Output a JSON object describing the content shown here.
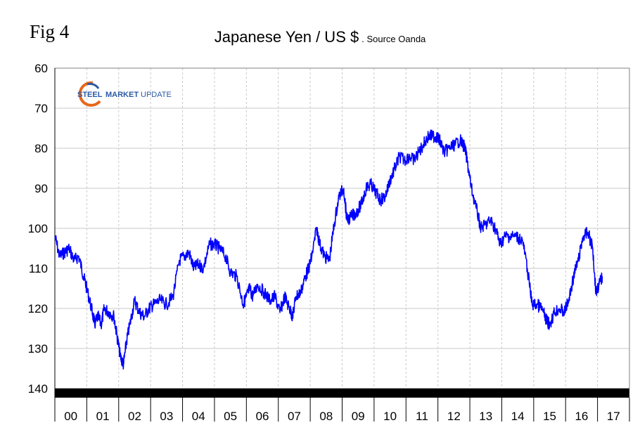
{
  "figure": {
    "label": "Fig 4",
    "title": "Japanese Yen / US $",
    "source": ". Source Oanda"
  },
  "logo": {
    "text_steel": "STEEL",
    "text_market": "MARKET",
    "text_update": "UPDATE"
  },
  "colors": {
    "line": "#0000ff",
    "grid": "#c8c8c8",
    "band": "#000000"
  },
  "chart_data": {
    "type": "line",
    "ylabel": "",
    "xlabel": "",
    "ylim": [
      60,
      140
    ],
    "y_inverted": true,
    "yticks": [
      60,
      70,
      80,
      90,
      100,
      110,
      120,
      130,
      140
    ],
    "grid": true,
    "categories": [
      "00",
      "01",
      "02",
      "03",
      "04",
      "05",
      "06",
      "07",
      "08",
      "09",
      "10",
      "11",
      "12",
      "13",
      "14",
      "15",
      "16",
      "17"
    ],
    "series": [
      {
        "values_by_year": [
          [
            2000.0,
            102
          ],
          [
            2000.15,
            107
          ],
          [
            2000.3,
            106
          ],
          [
            2000.45,
            105
          ],
          [
            2000.6,
            108
          ],
          [
            2000.75,
            107
          ],
          [
            2000.9,
            112
          ],
          [
            2001.0,
            115
          ],
          [
            2001.15,
            120
          ],
          [
            2001.25,
            124
          ],
          [
            2001.35,
            122
          ],
          [
            2001.45,
            124
          ],
          [
            2001.55,
            120
          ],
          [
            2001.7,
            121
          ],
          [
            2001.85,
            122
          ],
          [
            2001.95,
            127
          ],
          [
            2002.05,
            132
          ],
          [
            2002.15,
            134
          ],
          [
            2002.25,
            128
          ],
          [
            2002.35,
            124
          ],
          [
            2002.5,
            118
          ],
          [
            2002.65,
            121
          ],
          [
            2002.8,
            122
          ],
          [
            2002.95,
            120
          ],
          [
            2003.1,
            119
          ],
          [
            2003.3,
            118
          ],
          [
            2003.5,
            119
          ],
          [
            2003.7,
            117
          ],
          [
            2003.9,
            108
          ],
          [
            2004.05,
            107
          ],
          [
            2004.2,
            106
          ],
          [
            2004.35,
            110
          ],
          [
            2004.5,
            109
          ],
          [
            2004.65,
            110
          ],
          [
            2004.85,
            104
          ],
          [
            2005.0,
            104
          ],
          [
            2005.15,
            105
          ],
          [
            2005.35,
            107
          ],
          [
            2005.5,
            111
          ],
          [
            2005.7,
            112
          ],
          [
            2005.9,
            119
          ],
          [
            2006.0,
            117
          ],
          [
            2006.1,
            115
          ],
          [
            2006.2,
            117
          ],
          [
            2006.35,
            114
          ],
          [
            2006.55,
            116
          ],
          [
            2006.75,
            118
          ],
          [
            2006.9,
            117
          ],
          [
            2007.05,
            121
          ],
          [
            2007.2,
            117
          ],
          [
            2007.35,
            120
          ],
          [
            2007.45,
            122
          ],
          [
            2007.55,
            117
          ],
          [
            2007.7,
            116
          ],
          [
            2007.85,
            112
          ],
          [
            2007.95,
            110
          ],
          [
            2008.05,
            107
          ],
          [
            2008.2,
            100
          ],
          [
            2008.3,
            104
          ],
          [
            2008.45,
            107
          ],
          [
            2008.6,
            108
          ],
          [
            2008.75,
            99
          ],
          [
            2008.9,
            92
          ],
          [
            2009.05,
            90
          ],
          [
            2009.15,
            98
          ],
          [
            2009.3,
            97
          ],
          [
            2009.45,
            96
          ],
          [
            2009.6,
            94
          ],
          [
            2009.75,
            90
          ],
          [
            2009.9,
            89
          ],
          [
            2010.05,
            91
          ],
          [
            2010.2,
            93
          ],
          [
            2010.35,
            92
          ],
          [
            2010.5,
            88
          ],
          [
            2010.65,
            85
          ],
          [
            2010.8,
            82
          ],
          [
            2010.95,
            83
          ],
          [
            2011.1,
            82
          ],
          [
            2011.25,
            83
          ],
          [
            2011.4,
            81
          ],
          [
            2011.55,
            79
          ],
          [
            2011.7,
            77
          ],
          [
            2011.85,
            77
          ],
          [
            2011.95,
            77
          ],
          [
            2012.05,
            78
          ],
          [
            2012.2,
            81
          ],
          [
            2012.35,
            80
          ],
          [
            2012.55,
            79
          ],
          [
            2012.7,
            78
          ],
          [
            2012.85,
            80
          ],
          [
            2012.95,
            85
          ],
          [
            2013.05,
            90
          ],
          [
            2013.2,
            95
          ],
          [
            2013.35,
            100
          ],
          [
            2013.5,
            99
          ],
          [
            2013.65,
            98
          ],
          [
            2013.8,
            100
          ],
          [
            2013.95,
            104
          ],
          [
            2014.1,
            102
          ],
          [
            2014.25,
            102
          ],
          [
            2014.45,
            102
          ],
          [
            2014.65,
            103
          ],
          [
            2014.8,
            110
          ],
          [
            2014.95,
            119
          ],
          [
            2015.1,
            119
          ],
          [
            2015.25,
            120
          ],
          [
            2015.4,
            123
          ],
          [
            2015.5,
            124
          ],
          [
            2015.65,
            121
          ],
          [
            2015.8,
            120
          ],
          [
            2015.95,
            121
          ],
          [
            2016.1,
            118
          ],
          [
            2016.25,
            112
          ],
          [
            2016.4,
            108
          ],
          [
            2016.55,
            102
          ],
          [
            2016.7,
            101
          ],
          [
            2016.85,
            105
          ],
          [
            2016.95,
            116
          ],
          [
            2017.05,
            114
          ],
          [
            2017.15,
            112
          ]
        ]
      }
    ]
  }
}
